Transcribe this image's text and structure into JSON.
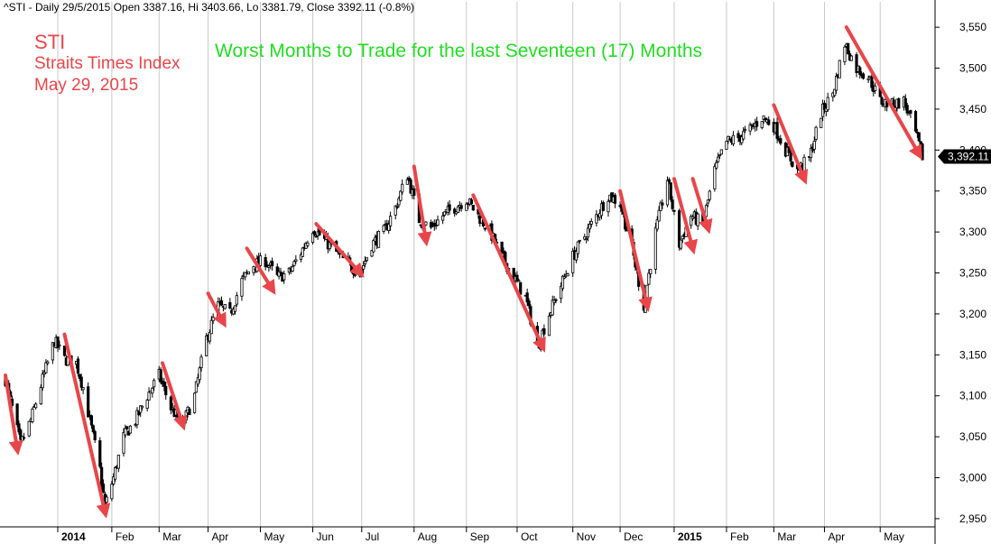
{
  "header": {
    "text": "^STI - Daily 29/5/2015 Open 3387.16, Hi 3403.66, Lo 3381.79, Close 3392.11 (-0.8%)"
  },
  "labels": {
    "symbol": "STI",
    "name": "Straits Times Index",
    "date": "May 29, 2015",
    "title": "Worst Months to Trade for the last Seventeen (17) Months"
  },
  "colors": {
    "arrow": "#e8464a",
    "title": "#22dd22",
    "candle": "#000000",
    "grid": "#c8c8c8",
    "last_label_bg": "#000000"
  },
  "chart_data": {
    "type": "candlestick",
    "title": "Worst Months to Trade for the last Seventeen (17) Months",
    "ylim": [
      2940,
      3570
    ],
    "y_ticks": [
      2950,
      3000,
      3050,
      3100,
      3150,
      3200,
      3250,
      3300,
      3350,
      3400,
      3450,
      3500,
      3550
    ],
    "y_tick_labels": [
      "2,950",
      "3,000",
      "3,050",
      "3,100",
      "3,150",
      "3,200",
      "3,250",
      "3,300",
      "3,350",
      "3,400",
      "3,450",
      "3,500",
      "3,550"
    ],
    "grid": "vertical",
    "x_range": [
      "2013-12-02",
      "2015-05-29"
    ],
    "month_ticks": [
      {
        "date": "2014-01-02",
        "label": "2014",
        "bold": true
      },
      {
        "date": "2014-02-03",
        "label": "Feb"
      },
      {
        "date": "2014-03-03",
        "label": "Mar"
      },
      {
        "date": "2014-04-01",
        "label": "Apr"
      },
      {
        "date": "2014-05-02",
        "label": "May"
      },
      {
        "date": "2014-06-02",
        "label": "Jun"
      },
      {
        "date": "2014-07-01",
        "label": "Jul"
      },
      {
        "date": "2014-08-01",
        "label": "Aug"
      },
      {
        "date": "2014-09-01",
        "label": "Sep"
      },
      {
        "date": "2014-10-01",
        "label": "Oct"
      },
      {
        "date": "2014-11-03",
        "label": "Nov"
      },
      {
        "date": "2014-12-01",
        "label": "Dec"
      },
      {
        "date": "2015-01-02",
        "label": "2015",
        "bold": true
      },
      {
        "date": "2015-02-02",
        "label": "Feb"
      },
      {
        "date": "2015-03-02",
        "label": "Mar"
      },
      {
        "date": "2015-04-01",
        "label": "Apr"
      },
      {
        "date": "2015-05-04",
        "label": "May"
      }
    ],
    "close_path": [
      [
        "2013-12-02",
        3120
      ],
      [
        "2013-12-06",
        3085
      ],
      [
        "2013-12-11",
        3040
      ],
      [
        "2013-12-17",
        3070
      ],
      [
        "2013-12-24",
        3120
      ],
      [
        "2013-12-31",
        3167
      ],
      [
        "2014-01-06",
        3145
      ],
      [
        "2014-01-13",
        3140
      ],
      [
        "2014-01-17",
        3110
      ],
      [
        "2014-01-22",
        3060
      ],
      [
        "2014-01-27",
        3010
      ],
      [
        "2014-01-30",
        2965
      ],
      [
        "2014-02-04",
        3000
      ],
      [
        "2014-02-10",
        3050
      ],
      [
        "2014-02-17",
        3070
      ],
      [
        "2014-02-24",
        3100
      ],
      [
        "2014-03-03",
        3125
      ],
      [
        "2014-03-10",
        3085
      ],
      [
        "2014-03-17",
        3065
      ],
      [
        "2014-03-24",
        3100
      ],
      [
        "2014-03-31",
        3170
      ],
      [
        "2014-04-07",
        3210
      ],
      [
        "2014-04-14",
        3200
      ],
      [
        "2014-04-21",
        3240
      ],
      [
        "2014-04-28",
        3260
      ],
      [
        "2014-05-05",
        3265
      ],
      [
        "2014-05-12",
        3245
      ],
      [
        "2014-05-19",
        3250
      ],
      [
        "2014-05-26",
        3275
      ],
      [
        "2014-06-02",
        3305
      ],
      [
        "2014-06-09",
        3290
      ],
      [
        "2014-06-16",
        3275
      ],
      [
        "2014-06-23",
        3260
      ],
      [
        "2014-06-30",
        3250
      ],
      [
        "2014-07-07",
        3285
      ],
      [
        "2014-07-14",
        3300
      ],
      [
        "2014-07-21",
        3330
      ],
      [
        "2014-07-28",
        3370
      ],
      [
        "2014-08-04",
        3315
      ],
      [
        "2014-08-11",
        3305
      ],
      [
        "2014-08-18",
        3320
      ],
      [
        "2014-08-25",
        3330
      ],
      [
        "2014-09-01",
        3340
      ],
      [
        "2014-09-08",
        3320
      ],
      [
        "2014-09-15",
        3300
      ],
      [
        "2014-09-22",
        3270
      ],
      [
        "2014-09-29",
        3245
      ],
      [
        "2014-10-06",
        3220
      ],
      [
        "2014-10-13",
        3160
      ],
      [
        "2014-10-20",
        3200
      ],
      [
        "2014-10-27",
        3235
      ],
      [
        "2014-11-03",
        3270
      ],
      [
        "2014-11-10",
        3295
      ],
      [
        "2014-11-17",
        3320
      ],
      [
        "2014-11-24",
        3345
      ],
      [
        "2014-12-01",
        3335
      ],
      [
        "2014-12-08",
        3280
      ],
      [
        "2014-12-15",
        3210
      ],
      [
        "2014-12-22",
        3300
      ],
      [
        "2014-12-29",
        3365
      ],
      [
        "2015-01-05",
        3285
      ],
      [
        "2015-01-12",
        3320
      ],
      [
        "2015-01-19",
        3310
      ],
      [
        "2015-01-26",
        3375
      ],
      [
        "2015-02-02",
        3410
      ],
      [
        "2015-02-09",
        3415
      ],
      [
        "2015-02-16",
        3425
      ],
      [
        "2015-02-23",
        3440
      ],
      [
        "2015-03-02",
        3430
      ],
      [
        "2015-03-09",
        3400
      ],
      [
        "2015-03-16",
        3375
      ],
      [
        "2015-03-23",
        3390
      ],
      [
        "2015-03-30",
        3445
      ],
      [
        "2015-04-06",
        3470
      ],
      [
        "2015-04-13",
        3530
      ],
      [
        "2015-04-20",
        3500
      ],
      [
        "2015-04-27",
        3490
      ],
      [
        "2015-05-04",
        3460
      ],
      [
        "2015-05-11",
        3455
      ],
      [
        "2015-05-18",
        3460
      ],
      [
        "2015-05-25",
        3420
      ],
      [
        "2015-05-29",
        3392.11
      ]
    ],
    "last_value_label": "3,392.11",
    "arrows_annotation": "Red arrows mark declines in the worst months",
    "arrows": [
      {
        "from": [
          "2013-12-02",
          3125
        ],
        "to": [
          "2013-12-09",
          3035
        ]
      },
      {
        "from": [
          "2014-01-06",
          3175
        ],
        "to": [
          "2014-01-30",
          2958
        ]
      },
      {
        "from": [
          "2014-03-05",
          3140
        ],
        "to": [
          "2014-03-17",
          3065
        ]
      },
      {
        "from": [
          "2014-04-01",
          3225
        ],
        "to": [
          "2014-04-10",
          3190
        ]
      },
      {
        "from": [
          "2014-04-24",
          3280
        ],
        "to": [
          "2014-05-09",
          3230
        ]
      },
      {
        "from": [
          "2014-06-04",
          3310
        ],
        "to": [
          "2014-06-30",
          3250
        ]
      },
      {
        "from": [
          "2014-08-01",
          3380
        ],
        "to": [
          "2014-08-08",
          3290
        ]
      },
      {
        "from": [
          "2014-09-05",
          3345
        ],
        "to": [
          "2014-10-16",
          3160
        ]
      },
      {
        "from": [
          "2014-12-01",
          3350
        ],
        "to": [
          "2014-12-17",
          3210
        ]
      },
      {
        "from": [
          "2015-01-02",
          3365
        ],
        "to": [
          "2015-01-13",
          3280
        ]
      },
      {
        "from": [
          "2015-01-13",
          3365
        ],
        "to": [
          "2015-01-22",
          3305
        ]
      },
      {
        "from": [
          "2015-03-02",
          3455
        ],
        "to": [
          "2015-03-20",
          3365
        ]
      },
      {
        "from": [
          "2015-04-14",
          3550
        ],
        "to": [
          "2015-05-27",
          3395
        ]
      }
    ]
  }
}
